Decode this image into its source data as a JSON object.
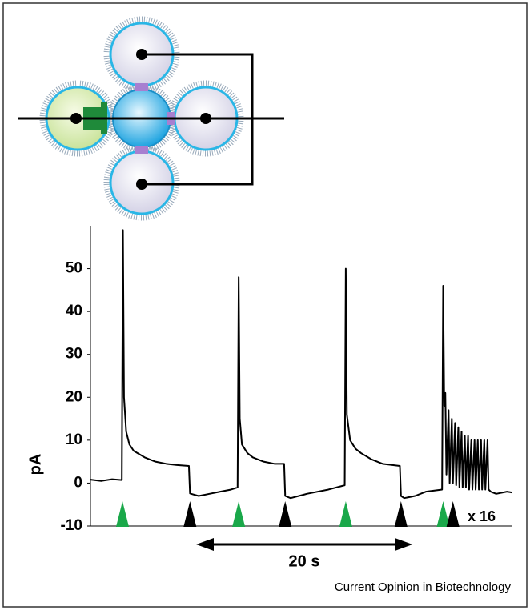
{
  "chart_data": {
    "type": "line",
    "y_label": "pA",
    "ylim": [
      -10,
      60
    ],
    "yticks": [
      -10,
      0,
      10,
      20,
      30,
      40,
      50
    ],
    "xlim": [
      0,
      39
    ],
    "x": [
      0,
      1,
      2,
      2.9,
      3.0,
      3.1,
      3.3,
      3.6,
      4,
      5,
      6,
      7,
      8,
      9.1,
      9.2,
      9.3,
      10,
      11,
      12,
      13,
      13.6,
      13.7,
      13.8,
      14,
      14.5,
      15,
      16,
      17,
      17.9,
      18.0,
      18.5,
      20,
      22,
      23.5,
      23.6,
      23.7,
      24,
      24.5,
      25,
      26,
      27,
      28.6,
      28.7,
      29,
      30,
      31,
      32.5,
      32.6,
      32.7,
      32.8,
      32.9,
      33.1,
      33.2,
      33.4,
      33.5,
      33.7,
      33.8,
      34.0,
      34.1,
      34.3,
      34.4,
      34.6,
      34.7,
      34.9,
      35.0,
      35.2,
      35.3,
      35.5,
      35.6,
      35.8,
      35.9,
      36.1,
      36.2,
      36.4,
      36.5,
      36.7,
      36.8,
      37,
      37.5,
      38.5,
      39
    ],
    "series": [
      {
        "color": "#000000",
        "values": [
          0.8,
          0.5,
          0.9,
          0.7,
          59,
          20,
          12,
          9,
          7.5,
          6,
          5,
          4.5,
          4.2,
          4,
          -2.4,
          -2.5,
          -3,
          -2.5,
          -2,
          -1.5,
          -1,
          48,
          15,
          9,
          7,
          6,
          5,
          4.5,
          4.5,
          -3,
          -3.5,
          -2.5,
          -1.5,
          -0.5,
          50,
          16,
          10,
          8,
          7,
          5.5,
          4.5,
          4,
          -3,
          -3.5,
          -3,
          -2,
          -1.5,
          46,
          18,
          21,
          2,
          17,
          0,
          15,
          0,
          14,
          -0.5,
          13,
          -1,
          12,
          -1,
          11,
          -1,
          11,
          -1.5,
          10,
          -1.5,
          10,
          -1.5,
          10,
          -1.5,
          10,
          -1.5,
          10,
          -1.5,
          10,
          -1.5,
          -2,
          -2.5,
          -2,
          -2.2
        ]
      }
    ],
    "stimulus_on": [
      2.96,
      13.7,
      23.6,
      32.6
    ],
    "on_color": "#1aa84a",
    "stimulus_off": [
      9.2,
      18.0,
      28.7,
      33.5
    ],
    "off_color": "#000000",
    "annotation": "x 16",
    "scale_bar": {
      "value": 20,
      "label": "20 s"
    },
    "source": "Current Opinion in Biotechnology"
  }
}
